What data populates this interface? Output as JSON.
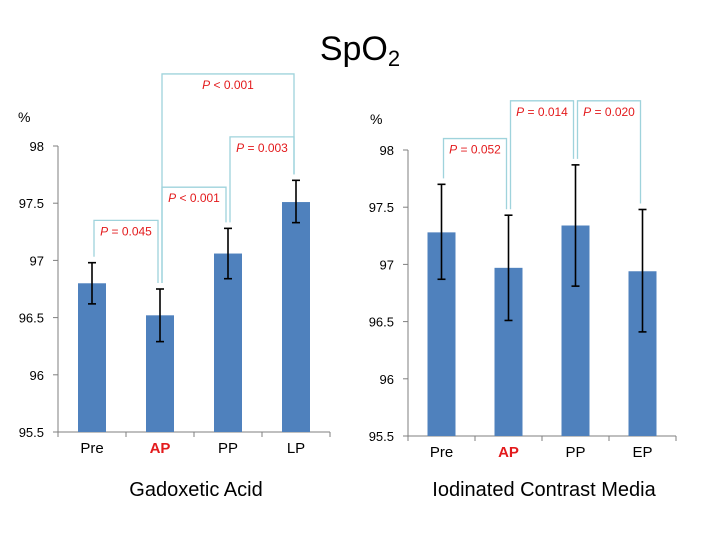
{
  "title": {
    "main": "SpO",
    "subscript": "2"
  },
  "chart_data": [
    {
      "type": "bar",
      "title": "",
      "xlabel": "Gadoxetic Acid",
      "ylabel": "%",
      "ylim": [
        95.5,
        98
      ],
      "yticks": [
        "95.5",
        "96",
        "96.5",
        "97",
        "97.5",
        "98"
      ],
      "categories": [
        "Pre",
        "AP",
        "PP",
        "LP"
      ],
      "highlight_category": "AP",
      "values": [
        96.8,
        96.52,
        97.06,
        97.51
      ],
      "error_low": [
        96.62,
        96.29,
        96.84,
        97.33
      ],
      "error_high": [
        96.98,
        96.75,
        97.28,
        97.7
      ],
      "bar_color": "#4f81bd",
      "highlight_color": "#e31a1c",
      "bracket_color": "#9fd3dc",
      "annotations": [
        {
          "from": 0,
          "to": 1,
          "italic": "P",
          "rest": " = 0.045",
          "level": 97.35
        },
        {
          "from": 1,
          "to": 2,
          "italic": "P",
          "rest": " < 0.001",
          "level": 97.64
        },
        {
          "from": 2,
          "to": 3,
          "italic": "P",
          "rest": " = 0.003",
          "level": 98.08
        },
        {
          "from": 1,
          "to": 3,
          "italic": "P",
          "rest": " < 0.001",
          "level": 98.63
        }
      ]
    },
    {
      "type": "bar",
      "title": "",
      "xlabel": "Iodinated Contrast Media",
      "ylabel": "%",
      "ylim": [
        95.5,
        98
      ],
      "yticks": [
        "95.5",
        "96",
        "96.5",
        "97",
        "97.5",
        "98"
      ],
      "categories": [
        "Pre",
        "AP",
        "PP",
        "EP"
      ],
      "highlight_category": "AP",
      "values": [
        97.28,
        96.97,
        97.34,
        96.94
      ],
      "error_low": [
        96.87,
        96.51,
        96.81,
        96.41
      ],
      "error_high": [
        97.7,
        97.43,
        97.87,
        97.48
      ],
      "bar_color": "#4f81bd",
      "highlight_color": "#e31a1c",
      "bracket_color": "#9fd3dc",
      "annotations": [
        {
          "from": 0,
          "to": 1,
          "italic": "P",
          "rest": " = 0.052",
          "level": 98.1
        },
        {
          "from": 1,
          "to": 2,
          "italic": "P",
          "rest": " = 0.014",
          "level": 98.43
        },
        {
          "from": 2,
          "to": 3,
          "italic": "P",
          "rest": " = 0.020",
          "level": 98.43
        }
      ]
    }
  ]
}
